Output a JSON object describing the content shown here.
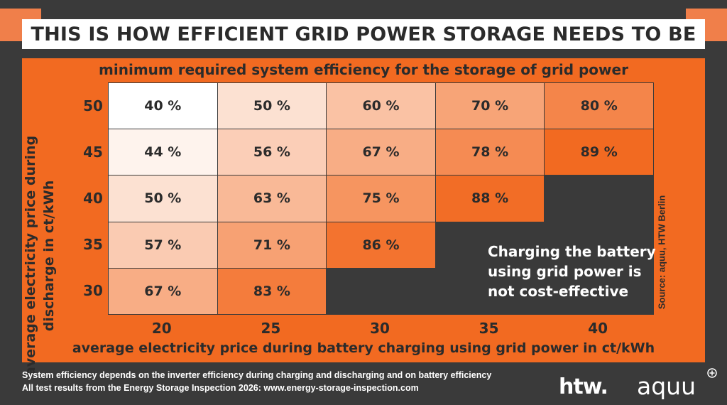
{
  "header": {
    "title": "THIS IS HOW EFFICIENT GRID POWER STORAGE NEEDS TO BE"
  },
  "chart_data": {
    "type": "heatmap",
    "title": "minimum required system efficiency for the storage of grid power",
    "xlabel": "average electricity price during battery charging using grid power in ct/kWh",
    "ylabel_lines": [
      "average electricity price during",
      "discharge in ct/kWh"
    ],
    "x": [
      "20",
      "25",
      "30",
      "35",
      "40"
    ],
    "y": [
      "50",
      "45",
      "40",
      "35",
      "30"
    ],
    "cells": [
      [
        "40 %",
        "50 %",
        "60 %",
        "70 %",
        "80 %"
      ],
      [
        "44 %",
        "56 %",
        "67 %",
        "78 %",
        "89 %"
      ],
      [
        "50 %",
        "63 %",
        "75 %",
        "88 %",
        null
      ],
      [
        "57 %",
        "71 %",
        "86 %",
        null,
        null
      ],
      [
        "67 %",
        "83 %",
        null,
        null,
        null
      ]
    ],
    "values": [
      [
        40,
        50,
        60,
        70,
        80
      ],
      [
        44,
        56,
        67,
        78,
        89
      ],
      [
        50,
        63,
        75,
        88,
        null
      ],
      [
        57,
        71,
        86,
        null,
        null
      ],
      [
        67,
        83,
        null,
        null,
        null
      ]
    ],
    "empty_region_note": "Charging the battery using grid power is not cost-effective",
    "source": "Source: aquu, HTW Berlin",
    "colors": {
      "low": "#ffffff",
      "high": "#f26a21",
      "empty": "#3a3a3a"
    }
  },
  "footer": {
    "line1": "System efficiency depends on the inverter efficiency during charging and discharging and on battery efficiency",
    "line2": "All test results from the Energy Storage Inspection 2026: www.energy-storage-inspection.com"
  },
  "logos": {
    "htw": "htw.",
    "aquu": "aquu"
  }
}
